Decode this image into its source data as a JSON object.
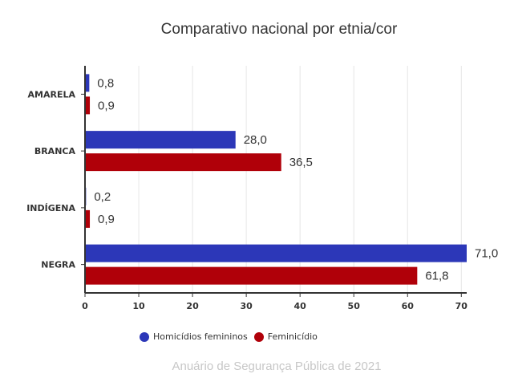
{
  "chart_data": {
    "type": "bar",
    "orientation": "horizontal",
    "title": "Comparativo nacional por etnia/cor",
    "categories": [
      "AMARELA",
      "BRANCA",
      "INDÍGENA",
      "NEGRA"
    ],
    "series": [
      {
        "name": "Homicídios femininos",
        "color": "#2c37b8",
        "values": [
          0.8,
          28.0,
          0.2,
          71.0
        ],
        "labels": [
          "0,8",
          "28,0",
          "0,2",
          "71,0"
        ]
      },
      {
        "name": "Feminicídio",
        "color": "#b00009",
        "values": [
          0.9,
          36.5,
          0.9,
          61.8
        ],
        "labels": [
          "0,9",
          "36,5",
          "0,9",
          "61,8"
        ]
      }
    ],
    "xlim": [
      0,
      71
    ],
    "xticks": [
      "0",
      "10",
      "20",
      "30",
      "40",
      "50",
      "60",
      "70"
    ],
    "grid": true,
    "legend_position": "bottom"
  },
  "source_note": "Anuário de Segurança Pública de 2021"
}
